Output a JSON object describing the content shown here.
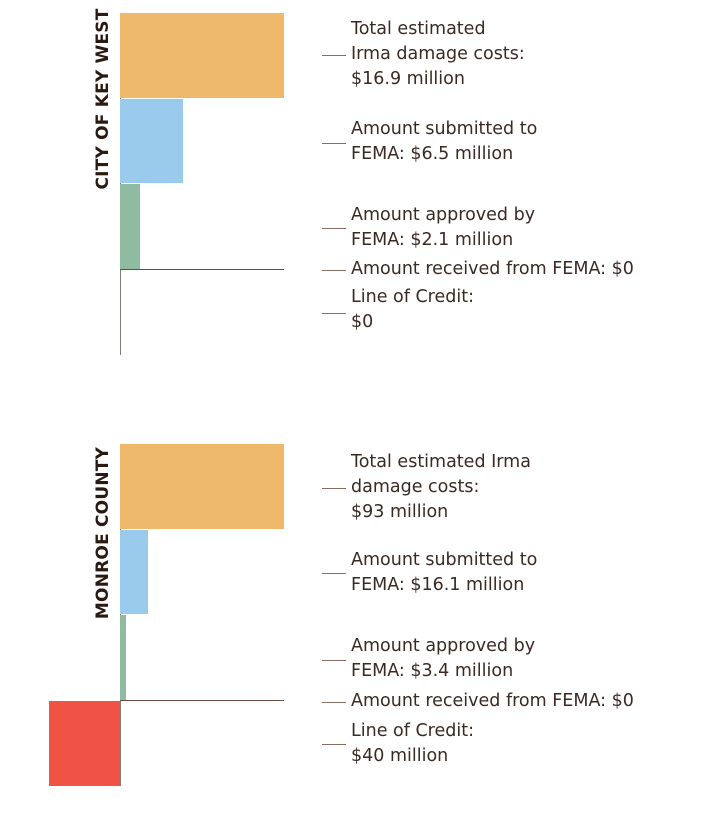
{
  "chart_data": [
    {
      "type": "bar",
      "title": "CITY OF KEY WEST",
      "unit": "million $",
      "categories": [
        "Total estimated Irma damage costs",
        "Amount submitted to FEMA",
        "Amount approved by FEMA",
        "Amount received from FEMA",
        "Line of Credit"
      ],
      "values": [
        16.9,
        6.5,
        2.1,
        0,
        0
      ],
      "labels": [
        "Total estimated\nIrma damage costs:\n$16.9 million",
        "Amount submitted to\nFEMA: $6.5 million",
        "Amount approved by\nFEMA: $2.1 million",
        "Amount received from FEMA: $0",
        "Line of Credit:\n$0"
      ]
    },
    {
      "type": "bar",
      "title": "MONROE COUNTY",
      "unit": "million $",
      "categories": [
        "Total estimated Irma damage costs",
        "Amount submitted to FEMA",
        "Amount approved by FEMA",
        "Amount received from FEMA",
        "Line of Credit"
      ],
      "values": [
        93,
        16.1,
        3.4,
        0,
        40
      ],
      "labels": [
        "Total estimated Irma\ndamage costs:\n$93 million",
        "Amount submitted to\nFEMA: $16.1 million",
        "Amount approved by\nFEMA: $3.4 million",
        "Amount received from FEMA: $0",
        "Line of Credit:\n$40 million"
      ]
    }
  ],
  "colors": {
    "total": "#eeb96a",
    "submitted": "#9acbec",
    "approved": "#8fbba0",
    "received": "#6b4a40",
    "credit": "#f05346"
  }
}
